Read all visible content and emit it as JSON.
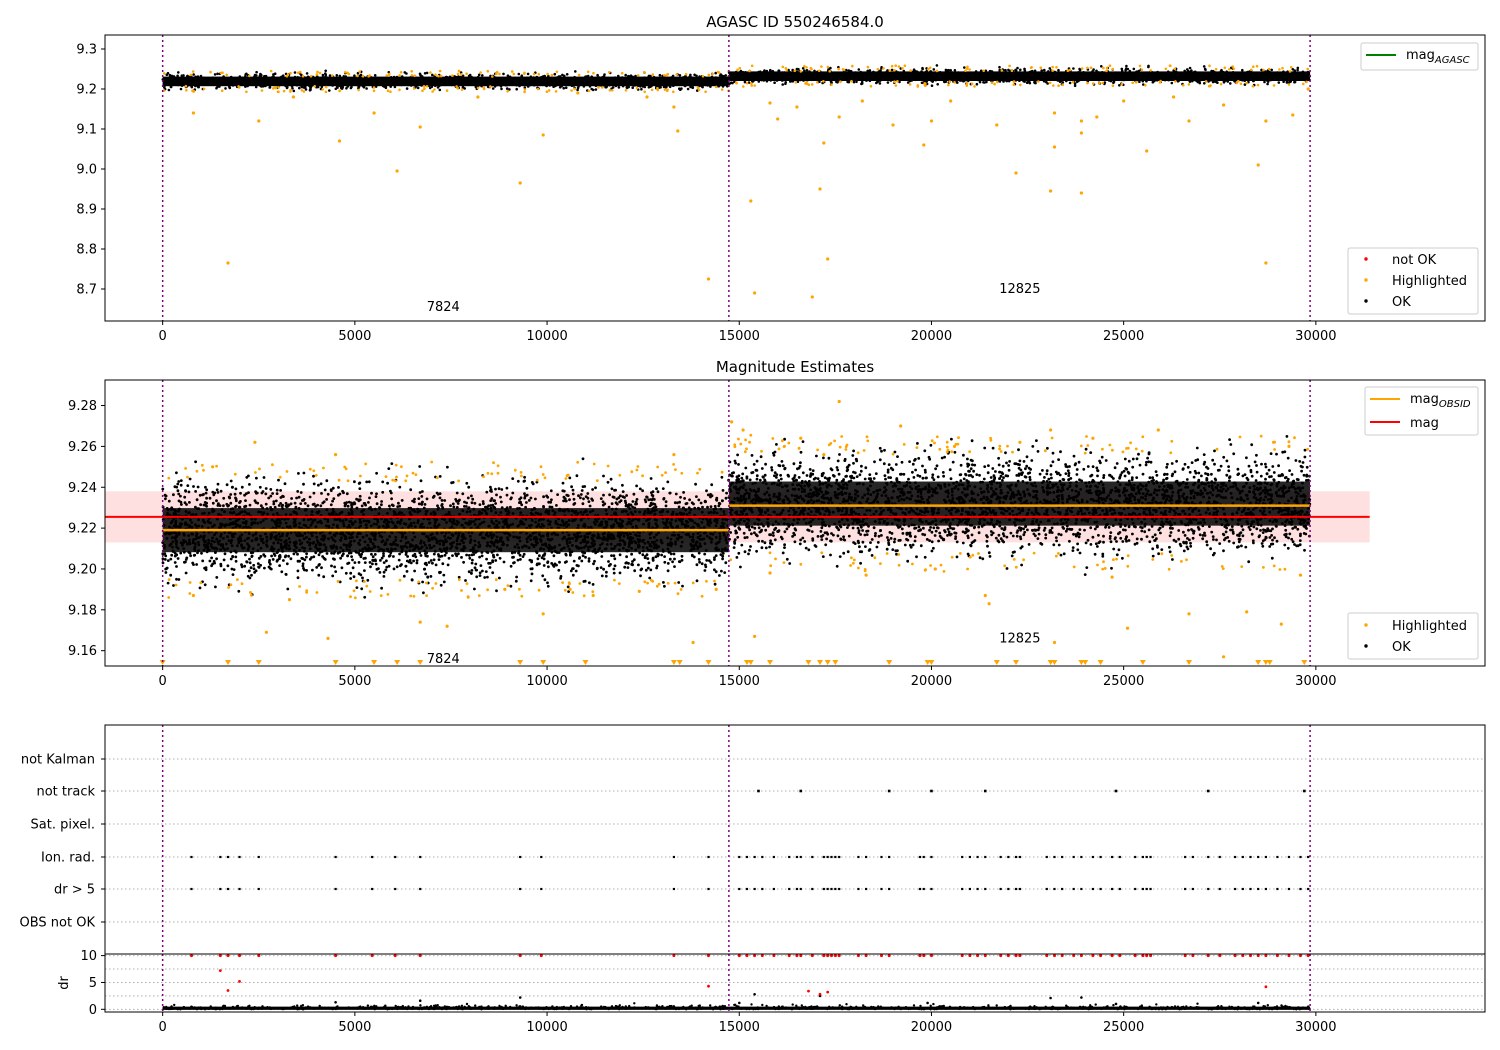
{
  "chart_data": [
    {
      "type": "scatter",
      "title": "AGASC ID 550246584.0",
      "xlim": [
        -1500,
        34400
      ],
      "ylim": [
        8.62,
        9.335
      ],
      "yticks": [
        8.7,
        8.8,
        8.9,
        9.0,
        9.1,
        9.2,
        9.3
      ],
      "yticklabels": [
        "8.7",
        "8.8",
        "8.9",
        "9.0",
        "9.1",
        "9.2",
        "9.3"
      ],
      "xticks": [
        0,
        5000,
        10000,
        15000,
        20000,
        25000,
        30000
      ],
      "xticklabels": [
        "0",
        "5000",
        "10000",
        "15000",
        "20000",
        "25000",
        "30000"
      ],
      "vlines": [
        0,
        14730,
        29850
      ],
      "annotations": [
        {
          "text": "7824",
          "x": 7300,
          "y": 8.655
        },
        {
          "text": "12825",
          "x": 22300,
          "y": 8.7
        }
      ],
      "bands": [
        {
          "x": [
            0,
            14730
          ],
          "center": 9.219,
          "spread": 0.012
        },
        {
          "x": [
            14730,
            29850
          ],
          "center": 9.232,
          "spread": 0.012
        }
      ],
      "legend_lines": [
        {
          "label_main": "mag",
          "label_sub": "AGASC",
          "color": "#008000"
        }
      ],
      "legend_points": [
        {
          "label": "not OK",
          "color": "#ff0000"
        },
        {
          "label": "Highlighted",
          "color": "#ffa500"
        },
        {
          "label": "OK",
          "color": "#000000"
        }
      ],
      "highlighted": [
        [
          800,
          9.14
        ],
        [
          1700,
          8.765
        ],
        [
          2500,
          9.12
        ],
        [
          3400,
          9.18
        ],
        [
          4600,
          9.07
        ],
        [
          5500,
          9.14
        ],
        [
          6100,
          8.995
        ],
        [
          6700,
          9.105
        ],
        [
          8200,
          9.18
        ],
        [
          9300,
          8.965
        ],
        [
          9900,
          9.085
        ],
        [
          10800,
          9.19
        ],
        [
          12600,
          9.18
        ],
        [
          13300,
          9.155
        ],
        [
          13400,
          9.095
        ],
        [
          14200,
          8.725
        ],
        [
          15300,
          8.92
        ],
        [
          15400,
          8.69
        ],
        [
          15800,
          9.165
        ],
        [
          16000,
          9.125
        ],
        [
          16500,
          9.155
        ],
        [
          16900,
          8.68
        ],
        [
          17100,
          8.95
        ],
        [
          17200,
          9.065
        ],
        [
          17300,
          8.775
        ],
        [
          17600,
          9.13
        ],
        [
          18200,
          9.17
        ],
        [
          19000,
          9.11
        ],
        [
          19800,
          9.06
        ],
        [
          20000,
          9.12
        ],
        [
          20500,
          9.17
        ],
        [
          21700,
          9.11
        ],
        [
          22200,
          8.99
        ],
        [
          23100,
          8.945
        ],
        [
          23200,
          9.055
        ],
        [
          23200,
          9.14
        ],
        [
          23900,
          8.94
        ],
        [
          23900,
          9.12
        ],
        [
          23900,
          9.09
        ],
        [
          24300,
          9.13
        ],
        [
          25000,
          9.17
        ],
        [
          25600,
          9.045
        ],
        [
          26300,
          9.18
        ],
        [
          26700,
          9.12
        ],
        [
          27600,
          9.16
        ],
        [
          28500,
          9.01
        ],
        [
          28700,
          8.765
        ],
        [
          28700,
          9.12
        ],
        [
          29400,
          9.135
        ],
        [
          29800,
          9.2
        ]
      ]
    },
    {
      "type": "scatter",
      "title": "Magnitude Estimates",
      "xlim": [
        -1500,
        34400
      ],
      "ylim": [
        9.1525,
        9.2925
      ],
      "yticks": [
        9.16,
        9.18,
        9.2,
        9.22,
        9.24,
        9.26,
        9.28
      ],
      "yticklabels": [
        "9.16",
        "9.18",
        "9.20",
        "9.22",
        "9.24",
        "9.26",
        "9.28"
      ],
      "xticks": [
        0,
        5000,
        10000,
        15000,
        20000,
        25000,
        30000
      ],
      "xticklabels": [
        "0",
        "5000",
        "10000",
        "15000",
        "20000",
        "25000",
        "30000"
      ],
      "vlines": [
        0,
        14730,
        29850
      ],
      "annotations": [
        {
          "text": "7824",
          "x": 7300,
          "y": 9.156
        },
        {
          "text": "12825",
          "x": 22300,
          "y": 9.166
        }
      ],
      "bands": [
        {
          "x": [
            0,
            14730
          ],
          "center": 9.219,
          "spread": 0.012
        },
        {
          "x": [
            14730,
            29850
          ],
          "center": 9.232,
          "spread": 0.012
        }
      ],
      "mag_obsid": [
        {
          "x": [
            0,
            14730
          ],
          "y": 9.219
        },
        {
          "x": [
            14730,
            29850
          ],
          "y": 9.231
        }
      ],
      "mag": {
        "x": [
          -1500,
          31400
        ],
        "y": 9.2255,
        "band": [
          9.213,
          9.238
        ]
      },
      "legend_lines": [
        {
          "label_main": "mag",
          "label_sub": "OBSID",
          "color": "#ffa500"
        },
        {
          "label_main": "mag",
          "label_sub": "",
          "color": "#ff0000"
        }
      ],
      "legend_points": [
        {
          "label": "Highlighted",
          "color": "#ffa500"
        },
        {
          "label": "OK",
          "color": "#000000"
        }
      ],
      "highlighted": [
        [
          800,
          9.187
        ],
        [
          1300,
          9.25
        ],
        [
          2400,
          9.262
        ],
        [
          2700,
          9.169
        ],
        [
          3300,
          9.185
        ],
        [
          4300,
          9.166
        ],
        [
          4500,
          9.256
        ],
        [
          6700,
          9.174
        ],
        [
          7400,
          9.172
        ],
        [
          8900,
          9.19
        ],
        [
          9900,
          9.178
        ],
        [
          10600,
          9.19
        ],
        [
          11200,
          9.187
        ],
        [
          12400,
          9.189
        ],
        [
          13300,
          9.256
        ],
        [
          13800,
          9.164
        ],
        [
          14400,
          9.19
        ],
        [
          14800,
          9.272
        ],
        [
          15100,
          9.268
        ],
        [
          15400,
          9.167
        ],
        [
          15800,
          9.198
        ],
        [
          16600,
          9.264
        ],
        [
          17200,
          9.256
        ],
        [
          17600,
          9.282
        ],
        [
          18300,
          9.197
        ],
        [
          19200,
          9.27
        ],
        [
          20100,
          9.2
        ],
        [
          20600,
          9.26
        ],
        [
          21400,
          9.187
        ],
        [
          21500,
          9.183
        ],
        [
          22300,
          9.262
        ],
        [
          23100,
          9.268
        ],
        [
          23200,
          9.164
        ],
        [
          24200,
          9.264
        ],
        [
          24700,
          9.196
        ],
        [
          25100,
          9.171
        ],
        [
          25900,
          9.268
        ],
        [
          26700,
          9.178
        ],
        [
          27600,
          9.157
        ],
        [
          28200,
          9.179
        ],
        [
          28900,
          9.262
        ],
        [
          29100,
          9.173
        ],
        [
          29600,
          9.197
        ],
        [
          29300,
          9.26
        ]
      ],
      "offscale_markers": [
        0,
        1700,
        2500,
        4500,
        5500,
        6100,
        6700,
        9300,
        9900,
        11000,
        13300,
        13450,
        14200,
        15200,
        15300,
        15800,
        16800,
        17100,
        17300,
        17500,
        18900,
        19900,
        20000,
        21700,
        22200,
        23100,
        23200,
        23900,
        24000,
        24400,
        25500,
        26700,
        28500,
        28700,
        28800,
        29700
      ]
    },
    {
      "type": "scatter",
      "title": "",
      "xlim": [
        -1500,
        34400
      ],
      "categories": [
        "not Kalman",
        "not track",
        "Sat. pixel.",
        "Ion. rad.",
        "dr > 5",
        "OBS not OK"
      ],
      "vlines": [
        0,
        14730,
        29850
      ],
      "not_track": [
        15500,
        16600,
        18900,
        20000,
        21400,
        24800,
        27200,
        29700
      ],
      "ion_rad": [
        750,
        1500,
        1700,
        2000,
        2500,
        4500,
        5450,
        6050,
        6700,
        9300,
        9850,
        13300,
        14200,
        15000,
        15200,
        15400,
        15600,
        15900,
        16300,
        16500,
        16600,
        16900,
        17200,
        17300,
        17400,
        17500,
        17600,
        18100,
        18300,
        18700,
        18900,
        19700,
        19800,
        20000,
        20800,
        21000,
        21200,
        21400,
        21800,
        22000,
        22200,
        22300,
        23000,
        23200,
        23400,
        23700,
        23900,
        24200,
        24400,
        24700,
        24900,
        25300,
        25500,
        25600,
        25700,
        26600,
        26800,
        27200,
        27500,
        27900,
        28100,
        28300,
        28500,
        28700,
        29000,
        29300,
        29600,
        29800
      ]
    },
    {
      "type": "scatter",
      "title": "",
      "ylabel": "dr",
      "xlim": [
        -1500,
        34400
      ],
      "ylim": [
        -0.5,
        10.3
      ],
      "yticks": [
        0,
        5,
        10
      ],
      "yticklabels": [
        "0",
        "5",
        "10"
      ],
      "xticks": [
        0,
        5000,
        10000,
        15000,
        20000,
        25000,
        30000
      ],
      "xticklabels": [
        "0",
        "5000",
        "10000",
        "15000",
        "20000",
        "25000",
        "30000"
      ],
      "vlines": [
        0,
        14730,
        29850
      ],
      "red_extra": [
        [
          1500,
          7.2
        ],
        [
          1700,
          3.5
        ],
        [
          2000,
          5.2
        ],
        [
          14200,
          4.3
        ],
        [
          16800,
          3.4
        ],
        [
          17100,
          2.8
        ],
        [
          17300,
          3.2
        ],
        [
          28700,
          4.2
        ]
      ],
      "black_extra": [
        [
          4500,
          1.3
        ],
        [
          6700,
          1.6
        ],
        [
          9300,
          2.2
        ],
        [
          15000,
          1.2
        ],
        [
          15400,
          2.8
        ],
        [
          17100,
          2.5
        ],
        [
          19900,
          1.2
        ],
        [
          23100,
          2.1
        ],
        [
          23900,
          2.2
        ],
        [
          24800,
          1.0
        ],
        [
          28500,
          1.2
        ]
      ]
    }
  ]
}
